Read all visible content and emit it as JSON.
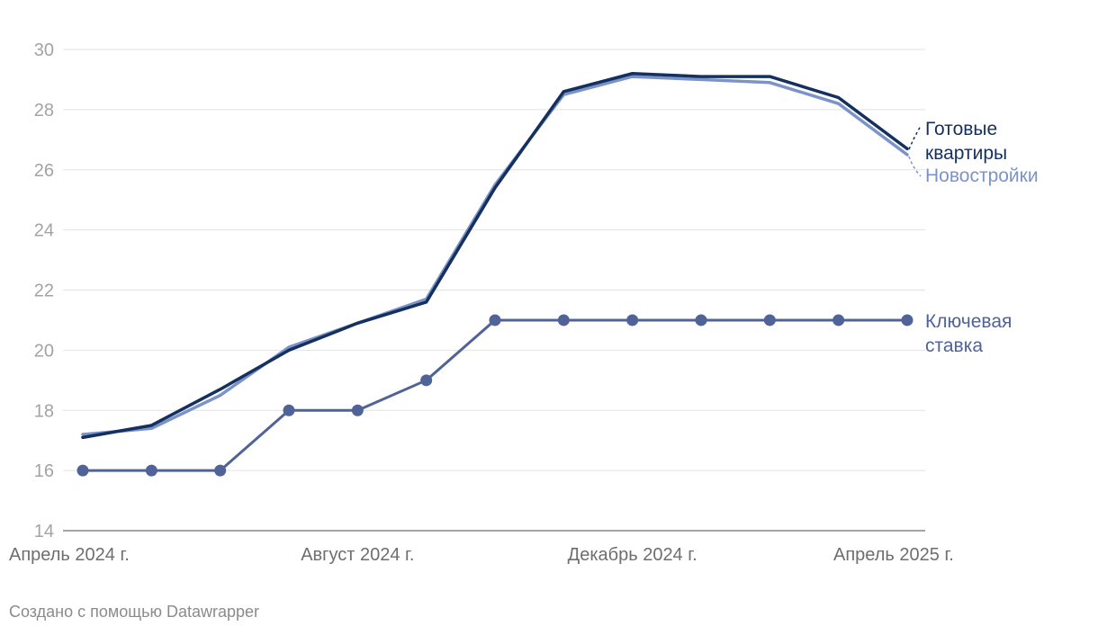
{
  "chart_data": {
    "type": "line",
    "title": "",
    "xlabel": "",
    "ylabel": "",
    "ylim": [
      14,
      30
    ],
    "yticks": [
      14,
      16,
      18,
      20,
      22,
      24,
      26,
      28,
      30
    ],
    "grid": true,
    "x": [
      "2024-04",
      "2024-05",
      "2024-06",
      "2024-07",
      "2024-08",
      "2024-09",
      "2024-10",
      "2024-11",
      "2024-12",
      "2025-01",
      "2025-02",
      "2025-03",
      "2025-04"
    ],
    "xtick_labels": [
      {
        "x": "2024-04",
        "label": "Апрель 2024 г."
      },
      {
        "x": "2024-08",
        "label": "Август 2024 г."
      },
      {
        "x": "2024-12",
        "label": "Декабрь 2024 г."
      },
      {
        "x": "2025-04",
        "label": "Апрель 2025 г."
      }
    ],
    "series": [
      {
        "name": "Новостройки",
        "color": "#7b93c9",
        "markers": false,
        "values": [
          17.2,
          17.4,
          18.5,
          20.1,
          20.9,
          21.7,
          25.5,
          28.5,
          29.1,
          29.0,
          28.9,
          28.2,
          26.5
        ]
      },
      {
        "name": "Готовые квартиры",
        "color": "#14305e",
        "markers": false,
        "values": [
          17.1,
          17.5,
          18.7,
          20.0,
          20.9,
          21.6,
          25.4,
          28.6,
          29.2,
          29.1,
          29.1,
          28.4,
          26.7
        ]
      },
      {
        "name": "Ключевая ставка",
        "color": "#4f6398",
        "markers": true,
        "values": [
          16,
          16,
          16,
          18,
          18,
          19,
          21,
          21,
          21,
          21,
          21,
          21,
          21
        ]
      }
    ],
    "legend": "inline-right"
  },
  "labels": {
    "ready": [
      "Готовые",
      "квартиры"
    ],
    "new": [
      "Новостройки"
    ],
    "rate": [
      "Ключевая",
      "ставка"
    ]
  },
  "footer": "Создано с помощью Datawrapper"
}
